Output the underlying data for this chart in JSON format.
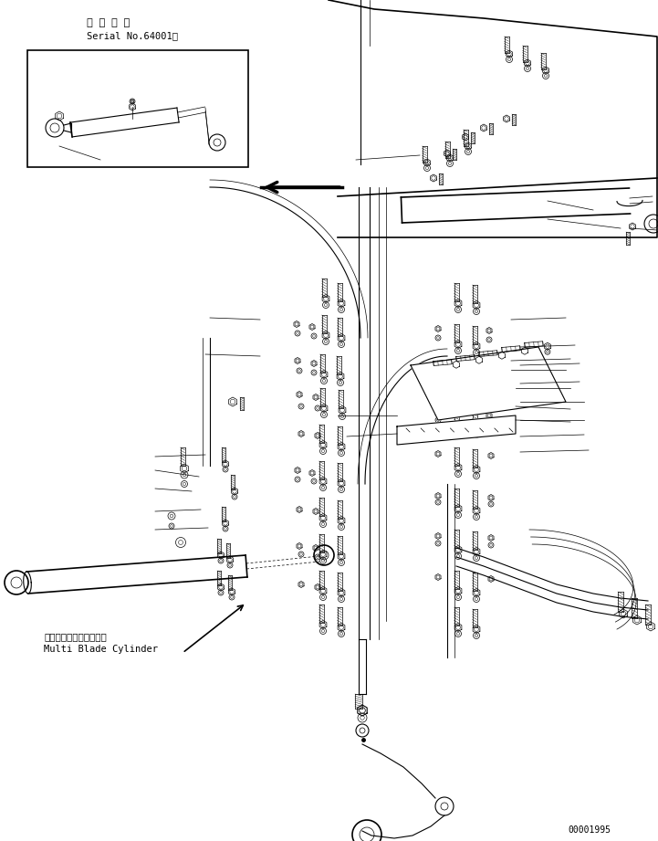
{
  "background_color": "#ffffff",
  "line_color": "#000000",
  "text_color": "#000000",
  "fig_width": 7.21,
  "fig_height": 9.21,
  "dpi": 100,
  "part_number": "00001995",
  "serial_label_jp": "適 用 号 機",
  "serial_label_en": "Serial No.64001～",
  "annotation_jp": "マルチブレードシリンダ",
  "annotation_en": "Multi Blade Cylinder"
}
